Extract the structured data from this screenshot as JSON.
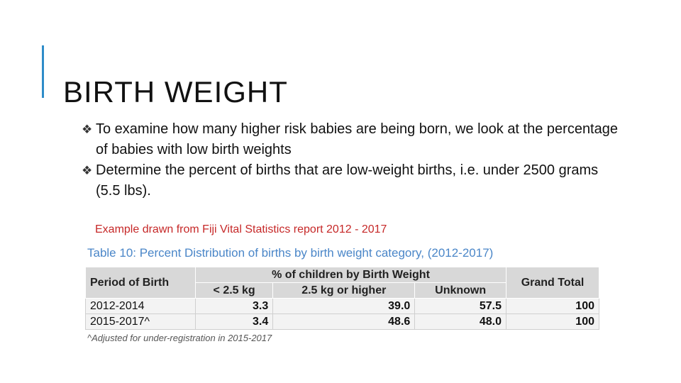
{
  "slide": {
    "title": "BIRTH WEIGHT",
    "accent_color": "#2e8cc9"
  },
  "bullets": [
    {
      "icon": "diamond-bullet-icon",
      "text": "To examine how many higher risk babies are being born, we look at the percentage of babies with low birth weights"
    },
    {
      "icon": "diamond-bullet-icon",
      "text": "Determine the percent of births that are low-weight births, i.e. under 2500 grams (5.5 lbs)."
    }
  ],
  "source_note": "Example drawn from Fiji  Vital Statistics report 2012 - 2017",
  "table": {
    "caption": "Table 10: Percent Distribution of births by birth weight category, (2012-2017)",
    "header_period": "Period of Birth",
    "header_group": "% of children by Birth Weight",
    "header_total": "Grand Total",
    "subheaders": [
      "< 2.5 kg",
      "2.5 kg or higher",
      "Unknown"
    ],
    "rows": [
      {
        "period": "2012-2014",
        "under_2_5": "3.3",
        "over_2_5": "39.0",
        "unknown": "57.5",
        "total": "100"
      },
      {
        "period": "2015-2017^",
        "under_2_5": "3.4",
        "over_2_5": "48.6",
        "unknown": "48.0",
        "total": "100"
      }
    ],
    "footnote": "^Adjusted for under-registration in 2015-2017"
  }
}
